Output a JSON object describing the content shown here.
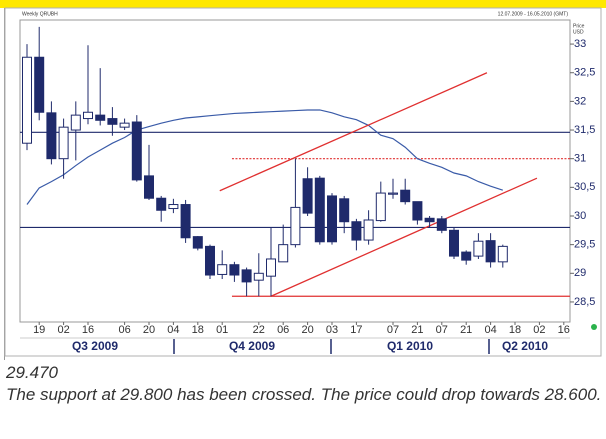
{
  "chart_data": {
    "type": "candlestick",
    "title": "Weekly QRUBH",
    "subtitle": "12.07.2009 - 16.05.2010 (GMT)",
    "y_axis_label": [
      "Price",
      "USD"
    ],
    "categories": [
      null,
      "19",
      null,
      "02",
      null,
      "16",
      null,
      null,
      "06",
      null,
      "20",
      null,
      "04",
      null,
      "18",
      null,
      "01",
      null,
      null,
      "22",
      null,
      "06",
      null,
      "20",
      null,
      "03",
      null,
      "17",
      null,
      null,
      "07",
      null,
      "21",
      null,
      "07",
      null,
      "21",
      null,
      "04",
      null,
      "18",
      null,
      "02",
      null,
      "16"
    ],
    "quarters": [
      "Q3 2009",
      "Q4 2009",
      "Q1 2010",
      "Q2 2010"
    ],
    "open": [
      31.27,
      32.77,
      31.8,
      31.0,
      31.5,
      31.7,
      31.76,
      31.7,
      31.55,
      31.64,
      30.7,
      30.31,
      30.13,
      30.2,
      29.64,
      29.47,
      28.98,
      29.15,
      29.06,
      28.88,
      28.95,
      29.2,
      29.5,
      30.65,
      30.66,
      30.35,
      30.3,
      29.9,
      29.58,
      29.92,
      30.38,
      30.45,
      30.25,
      29.96,
      29.95,
      29.75,
      29.37,
      29.3,
      29.57,
      29.2,
      null,
      null,
      null,
      null,
      null
    ],
    "high": [
      33.0,
      33.3,
      32.0,
      31.7,
      32.0,
      32.98,
      32.58,
      31.9,
      31.7,
      31.76,
      31.24,
      30.35,
      30.3,
      30.28,
      29.65,
      29.5,
      29.4,
      29.2,
      29.1,
      29.35,
      29.8,
      29.85,
      31.0,
      30.85,
      30.7,
      30.4,
      30.35,
      29.95,
      30.1,
      30.6,
      30.65,
      30.65,
      30.25,
      30.0,
      30.0,
      29.8,
      29.4,
      29.7,
      29.7,
      29.5,
      null,
      null,
      null,
      null,
      null
    ],
    "low": [
      31.15,
      31.67,
      30.9,
      30.65,
      30.97,
      31.6,
      31.58,
      31.4,
      31.5,
      30.6,
      30.28,
      29.9,
      30.05,
      29.53,
      29.4,
      28.9,
      28.9,
      28.85,
      28.6,
      28.6,
      28.6,
      29.2,
      29.45,
      30.0,
      29.5,
      29.5,
      29.7,
      29.4,
      29.5,
      29.9,
      30.3,
      30.2,
      29.85,
      29.8,
      29.7,
      29.25,
      29.15,
      29.25,
      29.1,
      29.1,
      null,
      null,
      null,
      null,
      null
    ],
    "close": [
      32.77,
      31.81,
      31.0,
      31.55,
      31.76,
      31.81,
      31.67,
      31.6,
      31.62,
      30.63,
      30.31,
      30.1,
      30.2,
      29.62,
      29.44,
      28.97,
      29.15,
      28.97,
      28.85,
      29.0,
      29.25,
      29.5,
      30.15,
      30.05,
      29.55,
      29.55,
      29.9,
      29.58,
      29.93,
      30.4,
      30.4,
      30.25,
      29.93,
      29.9,
      29.75,
      29.3,
      29.23,
      29.56,
      29.2,
      29.47,
      null,
      null,
      null,
      null,
      null
    ],
    "up_color": "#ffffff",
    "down_color": "#1f2a6b",
    "series": [
      {
        "color": "#3a5ba8",
        "values": [
          30.2,
          30.49,
          30.6,
          30.72,
          30.88,
          31.03,
          31.15,
          31.27,
          31.37,
          31.5,
          31.56,
          31.62,
          31.67,
          31.71,
          31.73,
          31.75,
          31.77,
          31.79,
          31.8,
          31.81,
          31.82,
          31.83,
          31.84,
          31.85,
          31.85,
          31.8,
          31.73,
          31.68,
          31.58,
          31.41,
          31.35,
          31.2,
          31.0,
          30.92,
          30.85,
          30.75,
          30.7,
          30.6,
          30.52,
          30.45,
          null,
          null,
          null,
          null,
          null
        ]
      }
    ],
    "levels": [
      {
        "value": 31.46,
        "color": "#1f2a6b",
        "style": "solid"
      },
      {
        "value": 29.8,
        "color": "#1f2a6b",
        "style": "solid"
      },
      {
        "value": 31.0,
        "color": "#e03030",
        "style": "dotted",
        "x_start": 16.8
      },
      {
        "value": 28.6,
        "color": "#e03030",
        "style": "solid",
        "x_start": 16.8
      }
    ],
    "trend_lines": [
      {
        "x": [
          20,
          41.8
        ],
        "y": [
          28.6,
          30.66
        ],
        "color": "#e03030"
      },
      {
        "x": [
          15.8,
          37.7
        ],
        "y": [
          30.44,
          32.5
        ],
        "color": "#e03030"
      }
    ],
    "ylim": [
      28.22,
      33.42
    ],
    "yticks": [
      33,
      {
        "value": 32.5,
        "label": "32,5"
      },
      32,
      {
        "value": 31.5,
        "label": "31,5"
      },
      31,
      {
        "value": 30.5,
        "label": "30,5"
      },
      30,
      {
        "value": 29.5,
        "label": "29,5"
      },
      29,
      {
        "value": 28.5,
        "label": "28,5"
      }
    ]
  },
  "commentary": {
    "price": "29.470",
    "text": "The support at 29.800 has been crossed. The price could drop towards 28.600."
  }
}
